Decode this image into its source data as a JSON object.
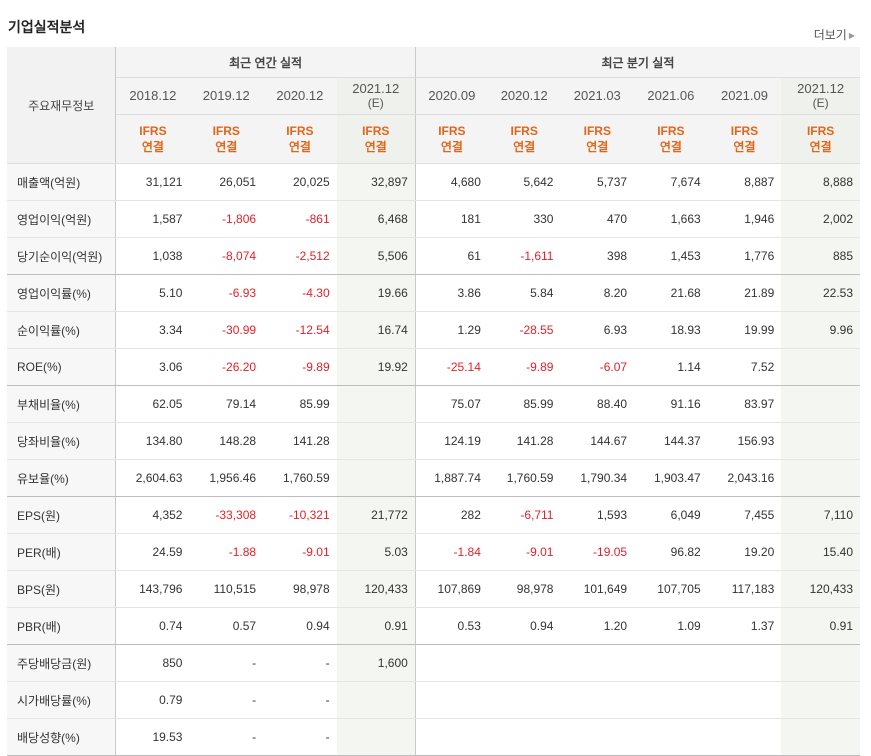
{
  "header": {
    "title": "기업실적분석",
    "more_label": "더보기"
  },
  "table": {
    "corner_label": "주요재무정보",
    "group_annual": "최근 연간 실적",
    "group_quarter": "최근 분기 실적",
    "periods": [
      {
        "label": "2018.12",
        "est": ""
      },
      {
        "label": "2019.12",
        "est": ""
      },
      {
        "label": "2020.12",
        "est": ""
      },
      {
        "label": "2021.12",
        "est": "(E)"
      },
      {
        "label": "2020.09",
        "est": ""
      },
      {
        "label": "2020.12",
        "est": ""
      },
      {
        "label": "2021.03",
        "est": ""
      },
      {
        "label": "2021.06",
        "est": ""
      },
      {
        "label": "2021.09",
        "est": ""
      },
      {
        "label": "2021.12",
        "est": "(E)"
      }
    ],
    "basis_top": "IFRS",
    "basis_bottom": "연결",
    "rows": [
      {
        "label": "매출액(억원)",
        "values": [
          "31,121",
          "26,051",
          "20,025",
          "32,897",
          "4,680",
          "5,642",
          "5,737",
          "7,674",
          "8,887",
          "8,888"
        ]
      },
      {
        "label": "영업이익(억원)",
        "values": [
          "1,587",
          "-1,806",
          "-861",
          "6,468",
          "181",
          "330",
          "470",
          "1,663",
          "1,946",
          "2,002"
        ]
      },
      {
        "label": "당기순이익(억원)",
        "values": [
          "1,038",
          "-8,074",
          "-2,512",
          "5,506",
          "61",
          "-1,611",
          "398",
          "1,453",
          "1,776",
          "885"
        ]
      },
      {
        "label": "영업이익률(%)",
        "values": [
          "5.10",
          "-6.93",
          "-4.30",
          "19.66",
          "3.86",
          "5.84",
          "8.20",
          "21.68",
          "21.89",
          "22.53"
        ]
      },
      {
        "label": "순이익률(%)",
        "values": [
          "3.34",
          "-30.99",
          "-12.54",
          "16.74",
          "1.29",
          "-28.55",
          "6.93",
          "18.93",
          "19.99",
          "9.96"
        ]
      },
      {
        "label": "ROE(%)",
        "values": [
          "3.06",
          "-26.20",
          "-9.89",
          "19.92",
          "-25.14",
          "-9.89",
          "-6.07",
          "1.14",
          "7.52",
          ""
        ]
      },
      {
        "label": "부채비율(%)",
        "values": [
          "62.05",
          "79.14",
          "85.99",
          "",
          "75.07",
          "85.99",
          "88.40",
          "91.16",
          "83.97",
          ""
        ]
      },
      {
        "label": "당좌비율(%)",
        "values": [
          "134.80",
          "148.28",
          "141.28",
          "",
          "124.19",
          "141.28",
          "144.67",
          "144.37",
          "156.93",
          ""
        ]
      },
      {
        "label": "유보율(%)",
        "values": [
          "2,604.63",
          "1,956.46",
          "1,760.59",
          "",
          "1,887.74",
          "1,760.59",
          "1,790.34",
          "1,903.47",
          "2,043.16",
          ""
        ]
      },
      {
        "label": "EPS(원)",
        "values": [
          "4,352",
          "-33,308",
          "-10,321",
          "21,772",
          "282",
          "-6,711",
          "1,593",
          "6,049",
          "7,455",
          "7,110"
        ]
      },
      {
        "label": "PER(배)",
        "values": [
          "24.59",
          "-1.88",
          "-9.01",
          "5.03",
          "-1.84",
          "-9.01",
          "-19.05",
          "96.82",
          "19.20",
          "15.40"
        ]
      },
      {
        "label": "BPS(원)",
        "values": [
          "143,796",
          "110,515",
          "98,978",
          "120,433",
          "107,869",
          "98,978",
          "101,649",
          "107,705",
          "117,183",
          "120,433"
        ]
      },
      {
        "label": "PBR(배)",
        "values": [
          "0.74",
          "0.57",
          "0.94",
          "0.91",
          "0.53",
          "0.94",
          "1.20",
          "1.09",
          "1.37",
          "0.91"
        ]
      },
      {
        "label": "주당배당금(원)",
        "values": [
          "850",
          "-",
          "-",
          "1,600",
          "",
          "",
          "",
          "",
          "",
          ""
        ]
      },
      {
        "label": "시가배당률(%)",
        "values": [
          "0.79",
          "-",
          "-",
          "",
          "",
          "",
          "",
          "",
          "",
          ""
        ]
      },
      {
        "label": "배당성향(%)",
        "values": [
          "19.53",
          "-",
          "-",
          "",
          "",
          "",
          "",
          "",
          "",
          ""
        ]
      }
    ],
    "colors": {
      "negative": "#e0222c",
      "basis": "#e2661a",
      "estimate_bg": "#f3f6f1"
    }
  }
}
